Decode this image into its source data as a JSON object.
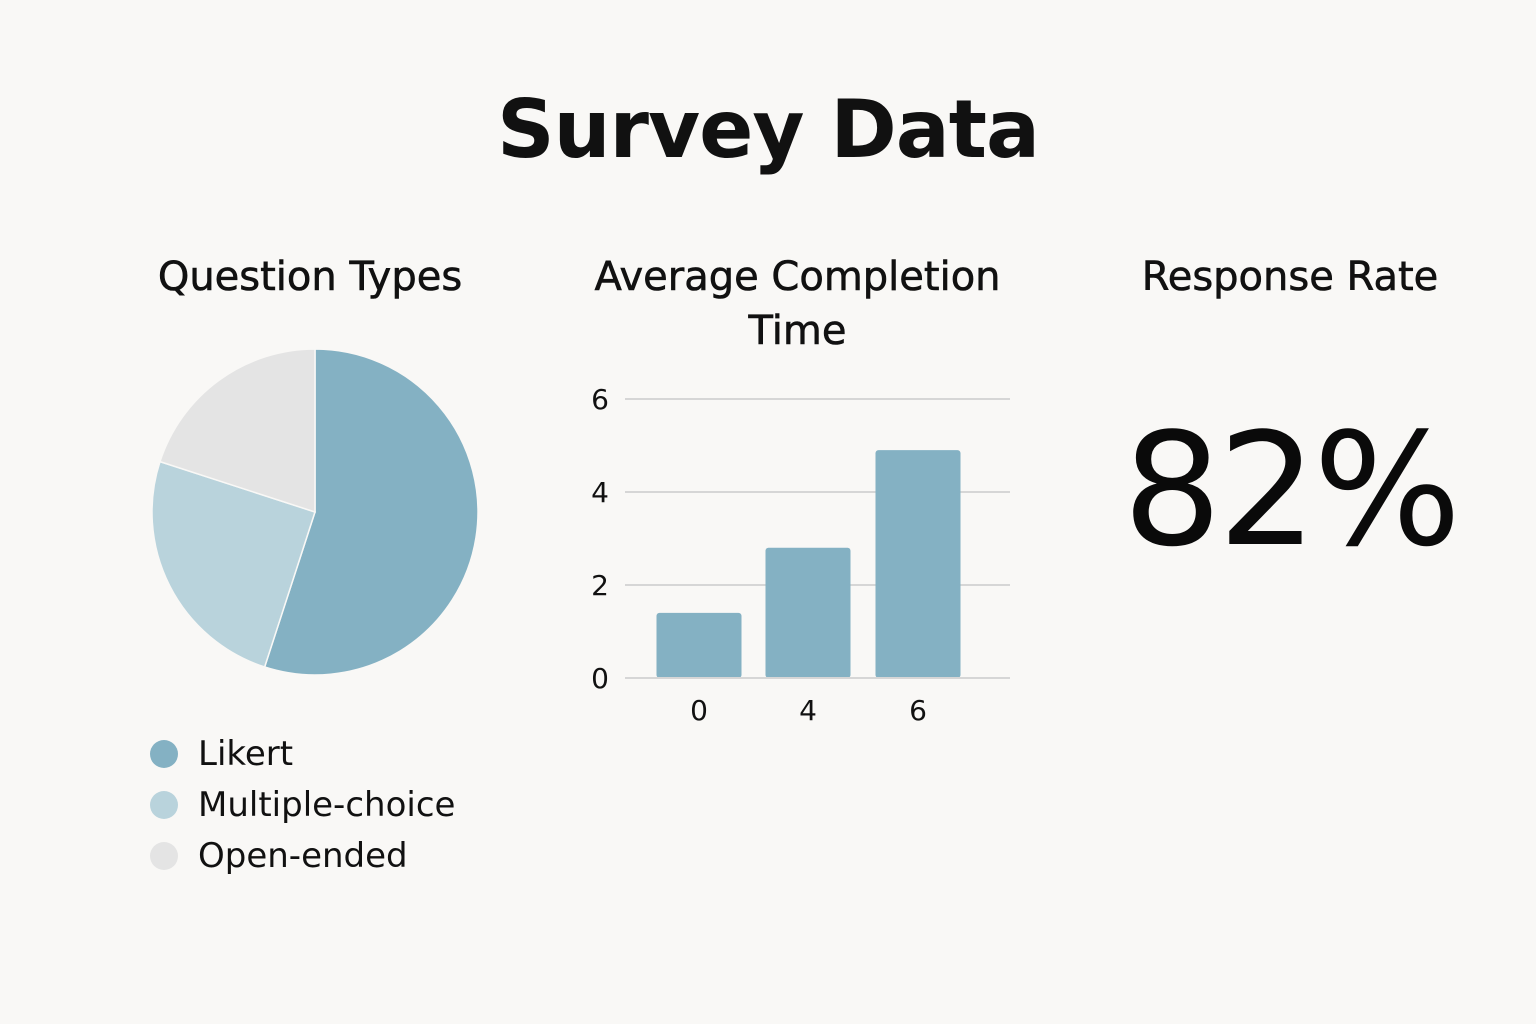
{
  "title": "Survey Data",
  "colors": {
    "background": "#f9f8f6",
    "primary": "#84b1c3",
    "secondary": "#b9d3dc",
    "tertiary": "#e4e4e4",
    "gridline": "#d6d6d6",
    "text": "#111111"
  },
  "chart_data": [
    {
      "type": "pie",
      "title": "Question Types",
      "legend_position": "bottom",
      "slices": [
        {
          "label": "Likert",
          "value": 55,
          "color": "#84b1c3"
        },
        {
          "label": "Multiple-choice",
          "value": 25,
          "color": "#b9d3dc"
        },
        {
          "label": "Open-ended",
          "value": 20,
          "color": "#e4e4e4"
        }
      ]
    },
    {
      "type": "bar",
      "title": "Average Completion Time",
      "categories": [
        "0",
        "4",
        "6"
      ],
      "values": [
        1.4,
        2.8,
        4.9
      ],
      "yticks": [
        "0",
        "2",
        "4",
        "6"
      ],
      "ylim": [
        0,
        6
      ],
      "grid": true,
      "color": "#84b1c3",
      "xlabel": "",
      "ylabel": ""
    }
  ],
  "response_rate": {
    "title": "Response Rate",
    "value": "82%"
  }
}
